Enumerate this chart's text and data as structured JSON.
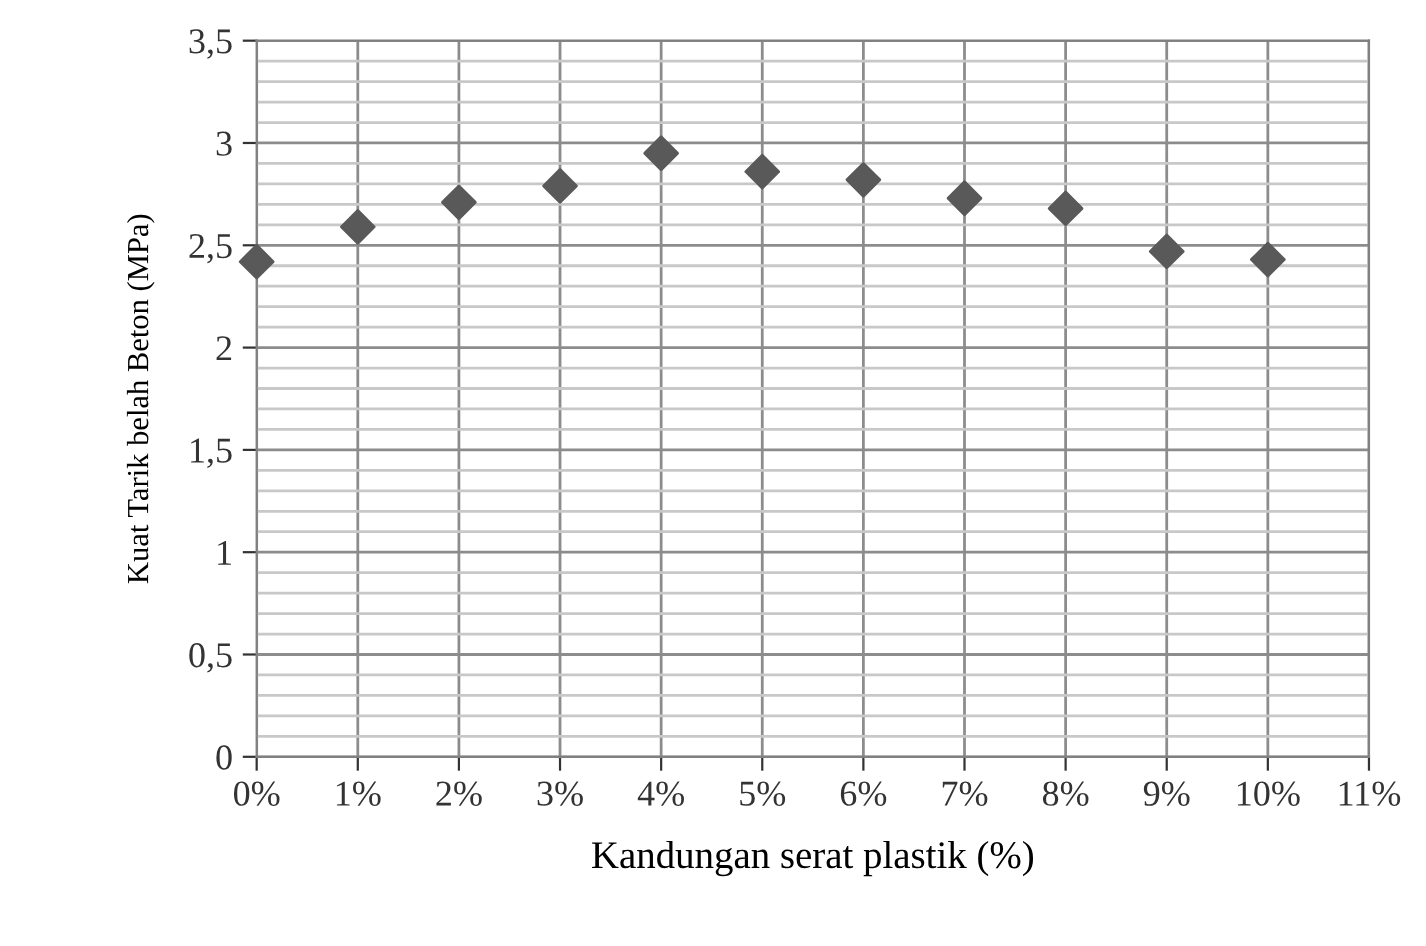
{
  "chart_data": {
    "type": "scatter",
    "xlabel": "Kandungan serat plastik (%)",
    "ylabel": "Kuat Tarik belah Beton (MPa)",
    "x": [
      0,
      1,
      2,
      3,
      4,
      5,
      6,
      7,
      8,
      9,
      10
    ],
    "series": [
      {
        "color": "#595959",
        "values": [
          2.42,
          2.59,
          2.71,
          2.79,
          2.95,
          2.86,
          2.82,
          2.73,
          2.68,
          2.47,
          2.43
        ]
      }
    ],
    "marker": "diamond",
    "grid": true,
    "xlim": [
      0,
      11
    ],
    "ylim": [
      0,
      3.5
    ],
    "xticks": [
      {
        "value": 0,
        "label": "0%"
      },
      {
        "value": 1,
        "label": "1%"
      },
      {
        "value": 2,
        "label": "2%"
      },
      {
        "value": 3,
        "label": "3%"
      },
      {
        "value": 4,
        "label": "4%"
      },
      {
        "value": 5,
        "label": "5%"
      },
      {
        "value": 6,
        "label": "6%"
      },
      {
        "value": 7,
        "label": "7%"
      },
      {
        "value": 8,
        "label": "8%"
      },
      {
        "value": 9,
        "label": "9%"
      },
      {
        "value": 10,
        "label": "10%"
      },
      {
        "value": 11,
        "label": "11%"
      }
    ],
    "yticks": [
      {
        "value": 0,
        "label": "0"
      },
      {
        "value": 0.1,
        "label": null
      },
      {
        "value": 0.2,
        "label": null
      },
      {
        "value": 0.3,
        "label": null
      },
      {
        "value": 0.4,
        "label": null
      },
      {
        "value": 0.5,
        "label": "0,5"
      },
      {
        "value": 0.6,
        "label": null
      },
      {
        "value": 0.7,
        "label": null
      },
      {
        "value": 0.8,
        "label": null
      },
      {
        "value": 0.9,
        "label": null
      },
      {
        "value": 1,
        "label": "1"
      },
      {
        "value": 1.1,
        "label": null
      },
      {
        "value": 1.2,
        "label": null
      },
      {
        "value": 1.3,
        "label": null
      },
      {
        "value": 1.4,
        "label": null
      },
      {
        "value": 1.5,
        "label": "1,5"
      },
      {
        "value": 1.6,
        "label": null
      },
      {
        "value": 1.7,
        "label": null
      },
      {
        "value": 1.8,
        "label": null
      },
      {
        "value": 1.9,
        "label": null
      },
      {
        "value": 2,
        "label": "2"
      },
      {
        "value": 2.1,
        "label": null
      },
      {
        "value": 2.2,
        "label": null
      },
      {
        "value": 2.3,
        "label": null
      },
      {
        "value": 2.4,
        "label": null
      },
      {
        "value": 2.5,
        "label": "2,5"
      },
      {
        "value": 2.6,
        "label": null
      },
      {
        "value": 2.7,
        "label": null
      },
      {
        "value": 2.8,
        "label": null
      },
      {
        "value": 2.9,
        "label": null
      },
      {
        "value": 3,
        "label": "3"
      },
      {
        "value": 3.1,
        "label": null
      },
      {
        "value": 3.2,
        "label": null
      },
      {
        "value": 3.3,
        "label": null
      },
      {
        "value": 3.4,
        "label": null
      },
      {
        "value": 3.5,
        "label": "3,5"
      }
    ]
  }
}
